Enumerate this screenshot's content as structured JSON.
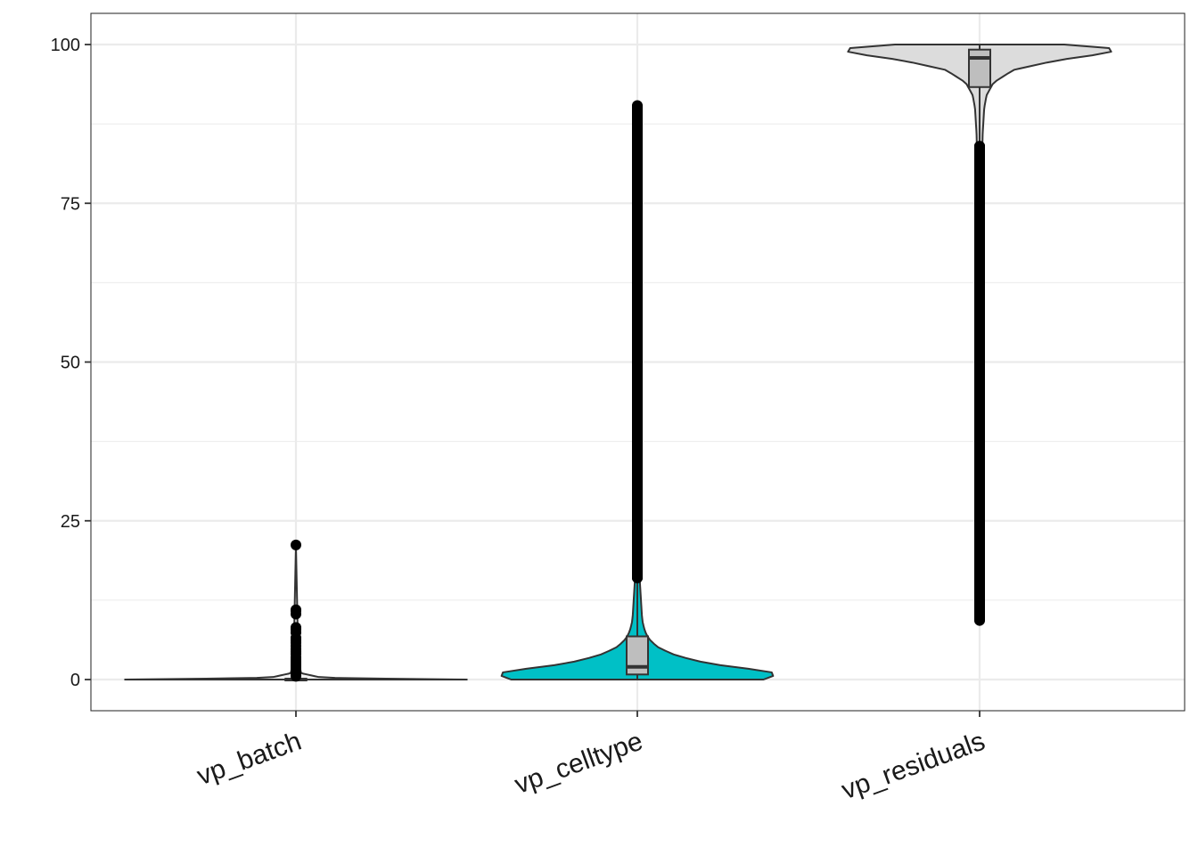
{
  "chart_data": {
    "type": "violin",
    "title": "",
    "xlabel": "",
    "ylabel": "",
    "categories": [
      "vp_batch",
      "vp_celltype",
      "vp_residuals"
    ],
    "ylim": [
      -4.8,
      105
    ],
    "yticks": [
      0,
      25,
      50,
      75,
      100
    ],
    "ytick_labels": [
      "0",
      "25",
      "50",
      "75",
      "100"
    ],
    "grid": true,
    "legend": "none",
    "colors": {
      "vp_batch": "#F2F2F2",
      "vp_celltype": "#00C0C6",
      "vp_residuals": "#DCDCDC",
      "box_fill": "#BEBEBE",
      "outline": "#333333",
      "points": "#000000",
      "grid": "#EBEBEB"
    },
    "series": [
      {
        "category": "vp_batch",
        "box": {
          "min": 0,
          "q1": 0,
          "median": 0,
          "q3": 0.1,
          "max": 0.3
        },
        "violin_max_halfwidth": 1.0,
        "violin_profile": [
          [
            0,
            1.0
          ],
          [
            0.1,
            0.6
          ],
          [
            0.3,
            0.15
          ],
          [
            1.0,
            0.03
          ],
          [
            3,
            0.015
          ],
          [
            8,
            0.01
          ],
          [
            21.2,
            0.0
          ]
        ],
        "outliers": [
          0.5,
          0.8,
          1.1,
          1.4,
          1.7,
          2.0,
          2.3,
          2.6,
          2.9,
          3.2,
          3.5,
          4.0,
          4.4,
          4.8,
          5.3,
          5.8,
          6.2,
          6.6,
          7.4,
          7.9,
          8.2,
          10.3,
          10.8,
          11.0,
          21.2
        ]
      },
      {
        "category": "vp_celltype",
        "box": {
          "min": 0,
          "q1": 0.8,
          "median": 2.0,
          "q3": 6.8,
          "max": 16.0
        },
        "violin_max_halfwidth": 0.9,
        "violin_profile": [
          [
            0,
            0.82
          ],
          [
            0.5,
            0.88
          ],
          [
            1.0,
            0.9
          ],
          [
            1.5,
            0.8
          ],
          [
            2.0,
            0.6
          ],
          [
            3.0,
            0.37
          ],
          [
            4.0,
            0.23
          ],
          [
            5.0,
            0.14
          ],
          [
            6.0,
            0.09
          ],
          [
            7.0,
            0.06
          ],
          [
            8.0,
            0.045
          ],
          [
            9.0,
            0.035
          ],
          [
            10.0,
            0.03
          ],
          [
            12.0,
            0.025
          ],
          [
            14.0,
            0.02
          ],
          [
            16.0,
            0.015
          ],
          [
            20.0,
            0.006
          ],
          [
            30.0,
            0.004
          ],
          [
            50.0,
            0.003
          ],
          [
            70.0,
            0.0025
          ],
          [
            90.4,
            0.0
          ]
        ],
        "outlier_range": [
          16.0,
          90.4
        ],
        "outlier_count": 640
      },
      {
        "category": "vp_residuals",
        "box": {
          "min": 84.0,
          "q1": 93.3,
          "median": 97.9,
          "q3": 99.2,
          "max": 100.0
        },
        "violin_max_halfwidth": 0.9,
        "violin_profile": [
          [
            100.0,
            0.55
          ],
          [
            99.6,
            0.8
          ],
          [
            99.2,
            0.9
          ],
          [
            98.6,
            0.82
          ],
          [
            97.5,
            0.5
          ],
          [
            96.0,
            0.22
          ],
          [
            94.0,
            0.09
          ],
          [
            92.0,
            0.045
          ],
          [
            90.0,
            0.03
          ],
          [
            88.0,
            0.025
          ],
          [
            86.0,
            0.02
          ],
          [
            84.0,
            0.018
          ],
          [
            80.0,
            0.01
          ],
          [
            60.0,
            0.005
          ],
          [
            30.0,
            0.004
          ],
          [
            9.3,
            0.0
          ]
        ],
        "outlier_range": [
          9.3,
          84.0
        ],
        "outlier_count": 700
      }
    ]
  }
}
